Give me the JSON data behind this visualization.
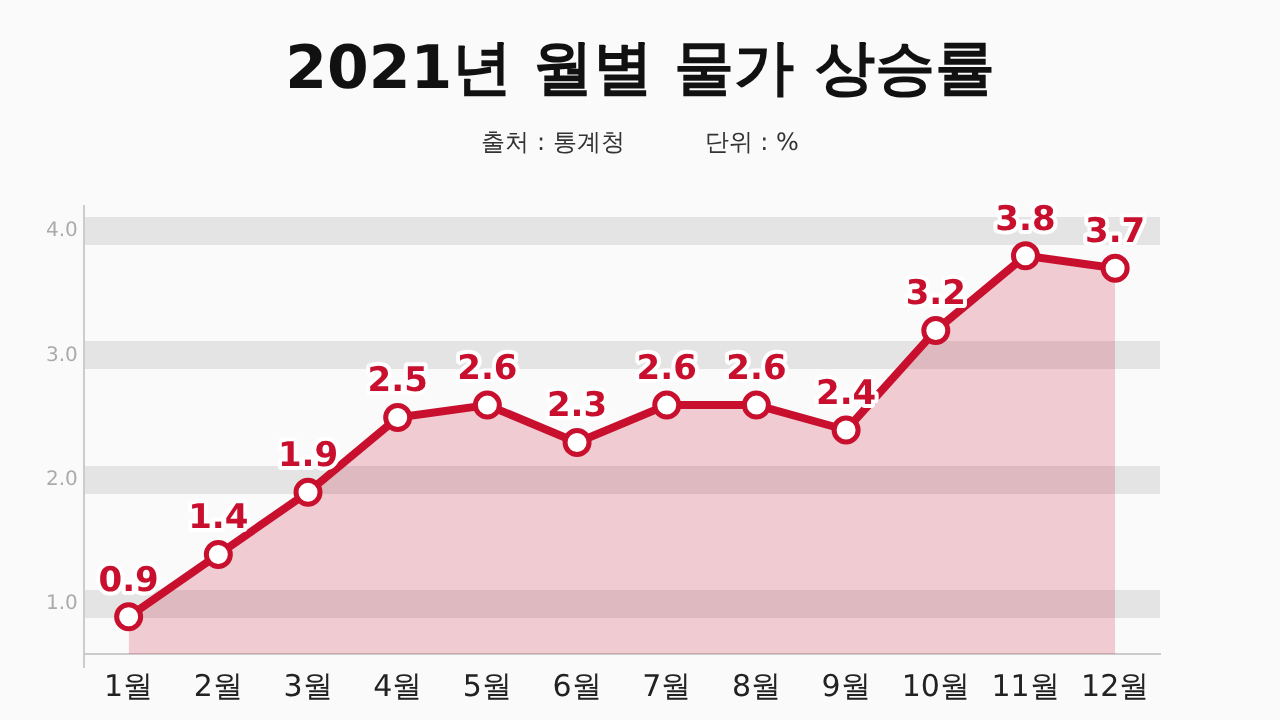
{
  "chart_data": {
    "type": "area",
    "title": "2021년 월별 물가 상승률",
    "subtitle": "단위 : %",
    "annotations": [
      "출처 : 통계청"
    ],
    "categories": [
      "1월",
      "2월",
      "3월",
      "4월",
      "5월",
      "6월",
      "7월",
      "8월",
      "9월",
      "10월",
      "11월",
      "12월"
    ],
    "series": [
      {
        "color": "#c8102e",
        "values": [
          0.9,
          1.4,
          1.9,
          2.5,
          2.6,
          2.3,
          2.6,
          2.6,
          2.4,
          3.2,
          3.8,
          3.7
        ]
      }
    ],
    "ylim": [
      0.6,
      4.2
    ],
    "yticks": [
      {
        "value": 1,
        "label": "1.0"
      },
      {
        "value": 2,
        "label": "2.0"
      },
      {
        "value": 3,
        "label": "3.0"
      },
      {
        "value": 4,
        "label": "4.0"
      }
    ],
    "grid": "y",
    "marker": "circle",
    "line_style": "solid",
    "data_labels": true,
    "legend": false
  }
}
